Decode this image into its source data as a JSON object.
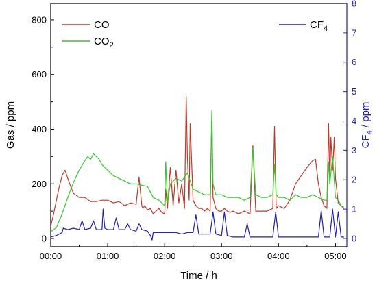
{
  "chart_data": {
    "type": "line",
    "xlabel": "Time / h",
    "ylabel_left": "Gas / ppm",
    "ylabel_right_main": "CF",
    "ylabel_right_sub": "4",
    "ylabel_right_unit": " / ppm",
    "xlim_hours": [
      0,
      5.2
    ],
    "ylim_left": [
      -30,
      860
    ],
    "ylim_right": [
      -0.28,
      8
    ],
    "x_ticks": [
      {
        "value": 0,
        "label": "00:00"
      },
      {
        "value": 1,
        "label": "01:00"
      },
      {
        "value": 2,
        "label": "02:00"
      },
      {
        "value": 3,
        "label": "03:00"
      },
      {
        "value": 4,
        "label": "04:00"
      },
      {
        "value": 5,
        "label": "05:00"
      }
    ],
    "y_left_ticks": [
      {
        "value": 0,
        "label": "0"
      },
      {
        "value": 200,
        "label": "200"
      },
      {
        "value": 400,
        "label": "400"
      },
      {
        "value": 600,
        "label": "600"
      },
      {
        "value": 800,
        "label": "800"
      }
    ],
    "y_right_ticks": [
      {
        "value": 0,
        "label": "0"
      },
      {
        "value": 1,
        "label": "1"
      },
      {
        "value": 2,
        "label": "2"
      },
      {
        "value": 3,
        "label": "3"
      },
      {
        "value": 4,
        "label": "4"
      },
      {
        "value": 5,
        "label": "5"
      },
      {
        "value": 6,
        "label": "6"
      },
      {
        "value": 7,
        "label": "7"
      },
      {
        "value": 8,
        "label": "8"
      }
    ],
    "legend": [
      {
        "name": "CO",
        "color": "#c0392b",
        "position": "top-left"
      },
      {
        "name": "CO",
        "sub": "2",
        "color": "#2ecc2e",
        "position": "top-left"
      },
      {
        "name": "CF",
        "sub": "4",
        "color": "#1f1fb4",
        "position": "top-right"
      }
    ],
    "series": [
      {
        "name": "CO",
        "axis": "left",
        "color": "#c0392b",
        "x": [
          0.0,
          0.05,
          0.1,
          0.15,
          0.2,
          0.25,
          0.3,
          0.35,
          0.4,
          0.5,
          0.6,
          0.7,
          0.8,
          0.9,
          1.0,
          1.1,
          1.2,
          1.3,
          1.4,
          1.5,
          1.55,
          1.6,
          1.62,
          1.65,
          1.7,
          1.75,
          1.8,
          1.85,
          1.9,
          1.95,
          2.0,
          2.02,
          2.05,
          2.1,
          2.15,
          2.2,
          2.25,
          2.3,
          2.35,
          2.38,
          2.4,
          2.43,
          2.45,
          2.5,
          2.55,
          2.6,
          2.65,
          2.7,
          2.75,
          2.8,
          2.83,
          2.85,
          2.9,
          2.95,
          3.0,
          3.05,
          3.1,
          3.15,
          3.2,
          3.3,
          3.4,
          3.5,
          3.55,
          3.6,
          3.7,
          3.8,
          3.9,
          3.93,
          3.96,
          4.0,
          4.1,
          4.2,
          4.3,
          4.4,
          4.5,
          4.6,
          4.65,
          4.7,
          4.75,
          4.8,
          4.85,
          4.88,
          4.9,
          4.92,
          4.95,
          4.98,
          5.0,
          5.05,
          5.1,
          5.15
        ],
        "y": [
          45,
          90,
          140,
          190,
          230,
          250,
          220,
          190,
          165,
          150,
          150,
          135,
          135,
          140,
          140,
          130,
          135,
          120,
          130,
          125,
          225,
          120,
          110,
          120,
          105,
          110,
          90,
          100,
          110,
          95,
          90,
          180,
          110,
          260,
          120,
          250,
          130,
          200,
          110,
          520,
          300,
          140,
          420,
          140,
          120,
          110,
          110,
          100,
          110,
          100,
          460,
          150,
          110,
          100,
          100,
          110,
          100,
          95,
          100,
          90,
          100,
          90,
          340,
          100,
          100,
          100,
          110,
          410,
          110,
          120,
          110,
          140,
          200,
          230,
          260,
          285,
          290,
          200,
          150,
          120,
          110,
          420,
          200,
          370,
          250,
          370,
          220,
          130,
          120,
          110
        ]
      },
      {
        "name": "CO2",
        "axis": "left",
        "color": "#2ecc2e",
        "x": [
          0.0,
          0.1,
          0.2,
          0.3,
          0.4,
          0.5,
          0.6,
          0.65,
          0.7,
          0.75,
          0.8,
          0.85,
          0.9,
          1.0,
          1.1,
          1.2,
          1.3,
          1.4,
          1.5,
          1.6,
          1.7,
          1.75,
          1.8,
          1.9,
          2.0,
          2.02,
          2.05,
          2.1,
          2.2,
          2.3,
          2.4,
          2.5,
          2.6,
          2.7,
          2.8,
          2.83,
          2.85,
          2.9,
          3.0,
          3.1,
          3.2,
          3.3,
          3.4,
          3.5,
          3.55,
          3.6,
          3.7,
          3.8,
          3.9,
          3.93,
          3.96,
          4.0,
          4.1,
          4.2,
          4.3,
          4.4,
          4.5,
          4.6,
          4.7,
          4.8,
          4.85,
          4.88,
          4.9,
          4.95,
          5.0,
          5.05,
          5.1,
          5.15
        ],
        "y": [
          25,
          40,
          90,
          150,
          205,
          250,
          285,
          300,
          290,
          310,
          300,
          290,
          270,
          250,
          230,
          220,
          210,
          200,
          200,
          195,
          190,
          170,
          150,
          140,
          120,
          280,
          130,
          200,
          220,
          210,
          240,
          180,
          170,
          160,
          160,
          470,
          200,
          160,
          160,
          150,
          150,
          150,
          140,
          150,
          330,
          160,
          150,
          150,
          160,
          270,
          160,
          150,
          150,
          140,
          160,
          150,
          150,
          160,
          150,
          140,
          140,
          280,
          200,
          300,
          150,
          140,
          120,
          115
        ]
      },
      {
        "name": "CF4",
        "axis": "right",
        "color": "#1f1fb4",
        "x": [
          0.0,
          0.1,
          0.2,
          0.22,
          0.3,
          0.4,
          0.5,
          0.55,
          0.6,
          0.7,
          0.75,
          0.8,
          0.9,
          0.92,
          0.95,
          1.0,
          1.1,
          1.15,
          1.2,
          1.3,
          1.35,
          1.4,
          1.5,
          1.55,
          1.6,
          1.7,
          1.75,
          1.78,
          1.8,
          1.9,
          2.0,
          2.1,
          2.2,
          2.3,
          2.4,
          2.5,
          2.55,
          2.6,
          2.7,
          2.8,
          2.85,
          2.9,
          3.0,
          3.05,
          3.1,
          3.2,
          3.3,
          3.4,
          3.45,
          3.5,
          3.6,
          3.7,
          3.8,
          3.9,
          3.95,
          4.0,
          4.1,
          4.2,
          4.3,
          4.4,
          4.5,
          4.6,
          4.7,
          4.75,
          4.8,
          4.9,
          4.95,
          5.0,
          5.05,
          5.1,
          5.15
        ],
        "y": [
          0.05,
          0.1,
          0.2,
          0.35,
          0.3,
          0.35,
          0.3,
          0.6,
          0.3,
          0.35,
          0.6,
          0.3,
          0.3,
          1.0,
          0.35,
          0.3,
          0.3,
          0.7,
          0.3,
          0.3,
          0.5,
          0.3,
          0.25,
          0.5,
          0.3,
          0.25,
          0.1,
          -0.05,
          0.2,
          0.2,
          0.2,
          0.2,
          0.2,
          0.15,
          0.2,
          0.2,
          0.8,
          0.15,
          0.15,
          0.15,
          0.9,
          0.15,
          0.1,
          0.9,
          0.1,
          0.05,
          0.05,
          0.05,
          0.5,
          0.05,
          0.05,
          0.05,
          0.05,
          0.05,
          0.9,
          0.05,
          0.05,
          0.05,
          0.05,
          0.05,
          0.05,
          0.05,
          0.05,
          0.95,
          0.05,
          0.05,
          1.0,
          0.05,
          0.9,
          0.05,
          0.05
        ]
      }
    ]
  }
}
